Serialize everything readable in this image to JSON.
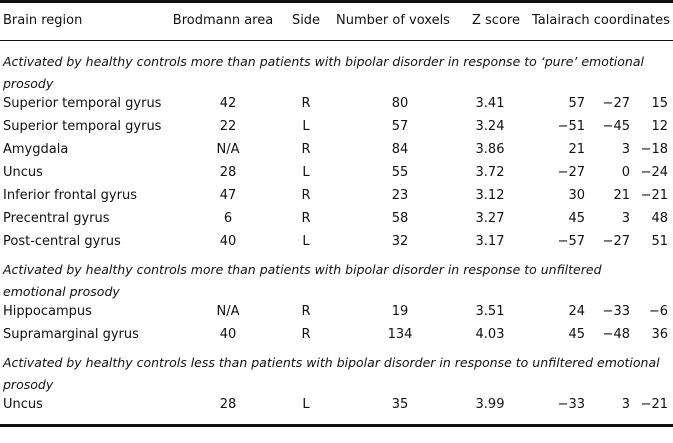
{
  "table": {
    "header": [
      "Brain region",
      "Brodmann area",
      "Side",
      "Number of voxels",
      "Z score",
      "Talairach coordinates"
    ],
    "sections": [
      {
        "title": "Activated by healthy controls more than patients with bipolar disorder in response to ‘pure’ emotional prosody",
        "rows": [
          [
            "Superior temporal gyrus",
            "42",
            "R",
            "80",
            "3.41",
            "57",
            "−27",
            "15"
          ],
          [
            "Superior temporal gyrus",
            "22",
            "L",
            "57",
            "3.24",
            "−51",
            "−45",
            "12"
          ],
          [
            "Amygdala",
            "N/A",
            "R",
            "84",
            "3.86",
            "21",
            "3",
            "−18"
          ],
          [
            "Uncus",
            "28",
            "L",
            "55",
            "3.72",
            "−27",
            "0",
            "−24"
          ],
          [
            "Inferior frontal gyrus",
            "47",
            "R",
            "23",
            "3.12",
            "30",
            "21",
            "−21"
          ],
          [
            "Precentral gyrus",
            "6",
            "R",
            "58",
            "3.27",
            "45",
            "3",
            "48"
          ],
          [
            "Post-central gyrus",
            "40",
            "L",
            "32",
            "3.17",
            "−57",
            "−27",
            "51"
          ]
        ]
      },
      {
        "title": "Activated by healthy controls more than patients with bipolar disorder in response to unfiltered emotional prosody",
        "rows": [
          [
            "Hippocampus",
            "N/A",
            "R",
            "19",
            "3.51",
            "24",
            "−33",
            "−6"
          ],
          [
            "Supramarginal gyrus",
            "40",
            "R",
            "134",
            "4.03",
            "45",
            "−48",
            "36"
          ]
        ]
      },
      {
        "title": "Activated by healthy controls less than patients with bipolar disorder in response to unfiltered emotional prosody",
        "rows": [
          [
            "Uncus",
            "28",
            "L",
            "35",
            "3.99",
            "−33",
            "3",
            "−21"
          ]
        ]
      }
    ]
  }
}
